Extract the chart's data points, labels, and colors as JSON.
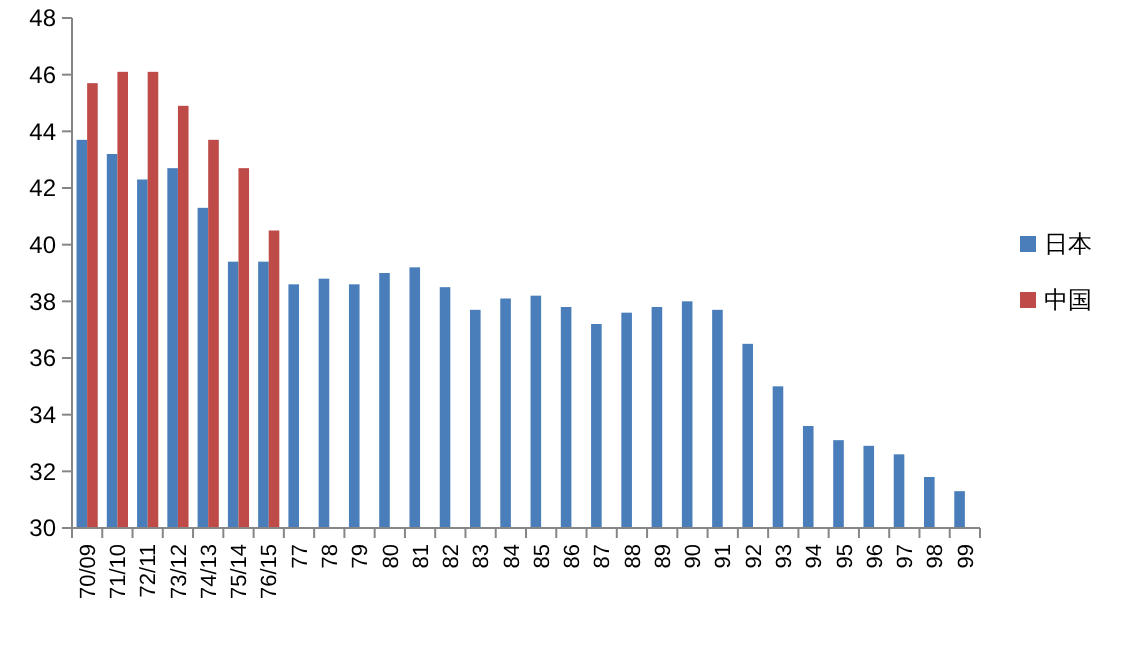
{
  "chart_data": {
    "type": "bar",
    "categories": [
      "70/09",
      "71/10",
      "72/11",
      "73/12",
      "74/13",
      "75/14",
      "76/15",
      "77",
      "78",
      "79",
      "80",
      "81",
      "82",
      "83",
      "84",
      "85",
      "86",
      "87",
      "88",
      "89",
      "90",
      "91",
      "92",
      "93",
      "94",
      "95",
      "96",
      "97",
      "98",
      "99"
    ],
    "series": [
      {
        "name": "日本",
        "color": "#4a7ebb",
        "values": [
          43.7,
          43.2,
          42.3,
          42.7,
          41.3,
          39.4,
          39.4,
          38.6,
          38.8,
          38.6,
          39.0,
          39.2,
          38.5,
          37.7,
          38.1,
          38.2,
          37.8,
          37.2,
          37.6,
          37.8,
          38.0,
          37.7,
          36.5,
          35.0,
          33.6,
          33.1,
          32.9,
          32.6,
          31.8,
          31.3
        ]
      },
      {
        "name": "中国",
        "color": "#be4b48",
        "values": [
          45.7,
          46.1,
          46.1,
          44.9,
          43.7,
          42.7,
          40.5,
          null,
          null,
          null,
          null,
          null,
          null,
          null,
          null,
          null,
          null,
          null,
          null,
          null,
          null,
          null,
          null,
          null,
          null,
          null,
          null,
          null,
          null,
          null
        ]
      }
    ],
    "ylim": [
      30,
      48
    ],
    "yticks": [
      30,
      32,
      34,
      36,
      38,
      40,
      42,
      44,
      46,
      48
    ],
    "grid": false,
    "legend": "right"
  }
}
